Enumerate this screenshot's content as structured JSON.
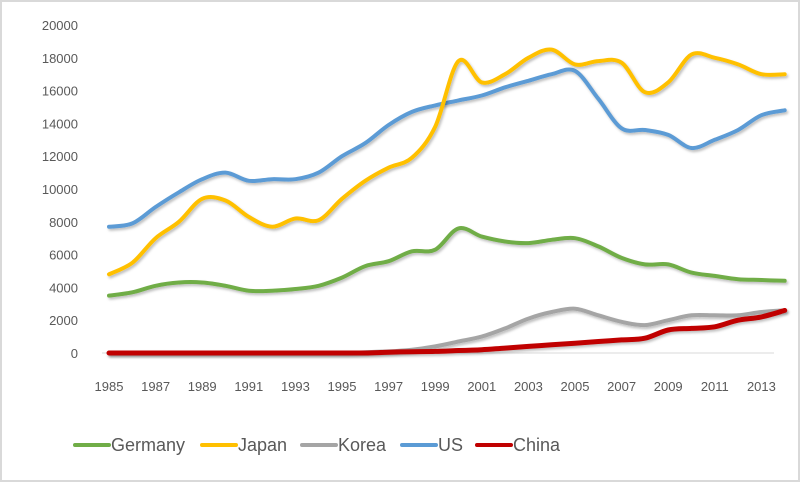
{
  "chart_data": {
    "type": "line",
    "title": "",
    "xlabel": "",
    "ylabel": "",
    "ylim": [
      0,
      20000
    ],
    "yticks": [
      "0",
      "2000",
      "4000",
      "6000",
      "8000",
      "10000",
      "12000",
      "14000",
      "16000",
      "18000",
      "20000"
    ],
    "xtick_labels": [
      "1985",
      "1987",
      "1989",
      "1991",
      "1993",
      "1995",
      "1997",
      "1999",
      "2001",
      "2003",
      "2005",
      "2007",
      "2009",
      "2011",
      "2013"
    ],
    "x": [
      1985,
      1986,
      1987,
      1988,
      1989,
      1990,
      1991,
      1992,
      1993,
      1994,
      1995,
      1996,
      1997,
      1998,
      1999,
      2000,
      2001,
      2002,
      2003,
      2004,
      2005,
      2006,
      2007,
      2008,
      2009,
      2010,
      2011,
      2012,
      2013,
      2014
    ],
    "grid": false,
    "legend_position": "bottom",
    "series": [
      {
        "name": "Germany",
        "color": "#70ad47",
        "values": [
          3500,
          3700,
          4100,
          4300,
          4300,
          4100,
          3800,
          3800,
          3900,
          4100,
          4600,
          5300,
          5600,
          6200,
          6300,
          7600,
          7100,
          6800,
          6700,
          6900,
          7000,
          6500,
          5800,
          5400,
          5400,
          4900,
          4700,
          4500,
          4450,
          4400
        ]
      },
      {
        "name": "Japan",
        "color": "#ffc000",
        "values": [
          4800,
          5500,
          7000,
          8000,
          9400,
          9300,
          8300,
          7700,
          8200,
          8100,
          9400,
          10500,
          11300,
          11900,
          13800,
          17800,
          16500,
          17000,
          18000,
          18500,
          17600,
          17800,
          17700,
          15900,
          16500,
          18200,
          18000,
          17600,
          17000,
          17000
        ]
      },
      {
        "name": "Korea",
        "color": "#a5a5a5",
        "values": [
          0,
          0,
          0,
          0,
          0,
          0,
          0,
          0,
          0,
          0,
          0,
          50,
          100,
          200,
          400,
          700,
          1000,
          1500,
          2100,
          2500,
          2700,
          2300,
          1900,
          1700,
          2000,
          2300,
          2300,
          2300,
          2500,
          2600
        ]
      },
      {
        "name": "US",
        "color": "#5b9bd5",
        "values": [
          7700,
          7900,
          8900,
          9800,
          10600,
          11000,
          10500,
          10600,
          10600,
          11000,
          12000,
          12800,
          13900,
          14700,
          15100,
          15400,
          15700,
          16200,
          16600,
          17000,
          17200,
          15500,
          13700,
          13600,
          13300,
          12500,
          13000,
          13600,
          14500,
          14800
        ]
      },
      {
        "name": "China",
        "color": "#c00000",
        "values": [
          0,
          0,
          0,
          0,
          0,
          0,
          0,
          0,
          0,
          0,
          0,
          0,
          50,
          80,
          100,
          150,
          200,
          300,
          400,
          500,
          600,
          700,
          800,
          900,
          1400,
          1500,
          1600,
          2000,
          2200,
          2600
        ]
      }
    ]
  }
}
